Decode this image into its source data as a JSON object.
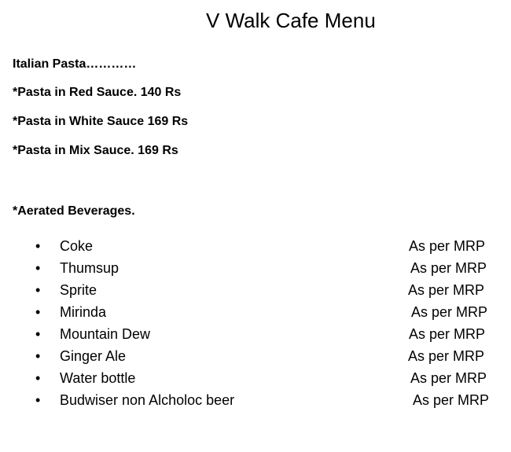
{
  "title": "V Walk Cafe Menu",
  "pasta": {
    "heading": "Italian Pasta…………",
    "items": [
      "*Pasta in Red Sauce. 140 Rs",
      "*Pasta in White Sauce 169 Rs",
      "*Pasta in Mix Sauce. 169 Rs"
    ]
  },
  "beverages": {
    "heading": "*Aerated Beverages.",
    "bullet": "•",
    "items": [
      {
        "name": "Coke",
        "price": "As per MRP"
      },
      {
        "name": "Thumsup",
        "price": "As per MRP"
      },
      {
        "name": "Sprite",
        "price": "As per MRP"
      },
      {
        "name": "Mirinda",
        "price": "As per MRP"
      },
      {
        "name": "Mountain Dew",
        "price": "As per MRP"
      },
      {
        "name": "Ginger Ale",
        "price": "As per MRP"
      },
      {
        "name": "Water bottle",
        "price": "As per MRP"
      },
      {
        "name": "Budwiser non Alcholoc beer",
        "price": "As per MRP"
      }
    ]
  }
}
